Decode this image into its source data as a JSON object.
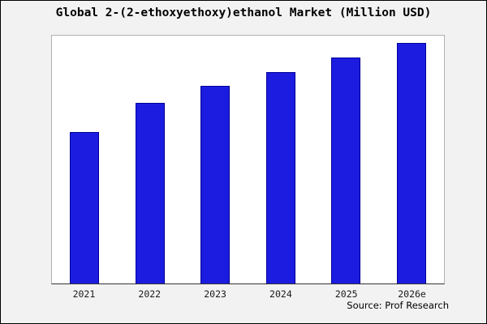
{
  "title": "Global 2-(2-ethoxyethoxy)ethanol Market (Million USD)",
  "source": "Source: Prof Research",
  "colors": {
    "bar_fill": "#1c1ce0",
    "bar_border": "#000099",
    "frame_background": "#f2f2f2",
    "plot_background": "#ffffff"
  },
  "chart_data": {
    "type": "bar",
    "title": "Global 2-(2-ethoxyethoxy)ethanol Market (Million USD)",
    "categories": [
      "2021",
      "2022",
      "2023",
      "2024",
      "2025",
      "2026e"
    ],
    "values": [
      63,
      75,
      82,
      88,
      94,
      100
    ],
    "xlabel": "",
    "ylabel": "",
    "ylim": [
      0,
      103
    ],
    "grid": false,
    "legend": false,
    "value_units": "relative estimate (y-axis unlabeled in source image)",
    "annotations": [
      "Source: Prof Research"
    ]
  }
}
